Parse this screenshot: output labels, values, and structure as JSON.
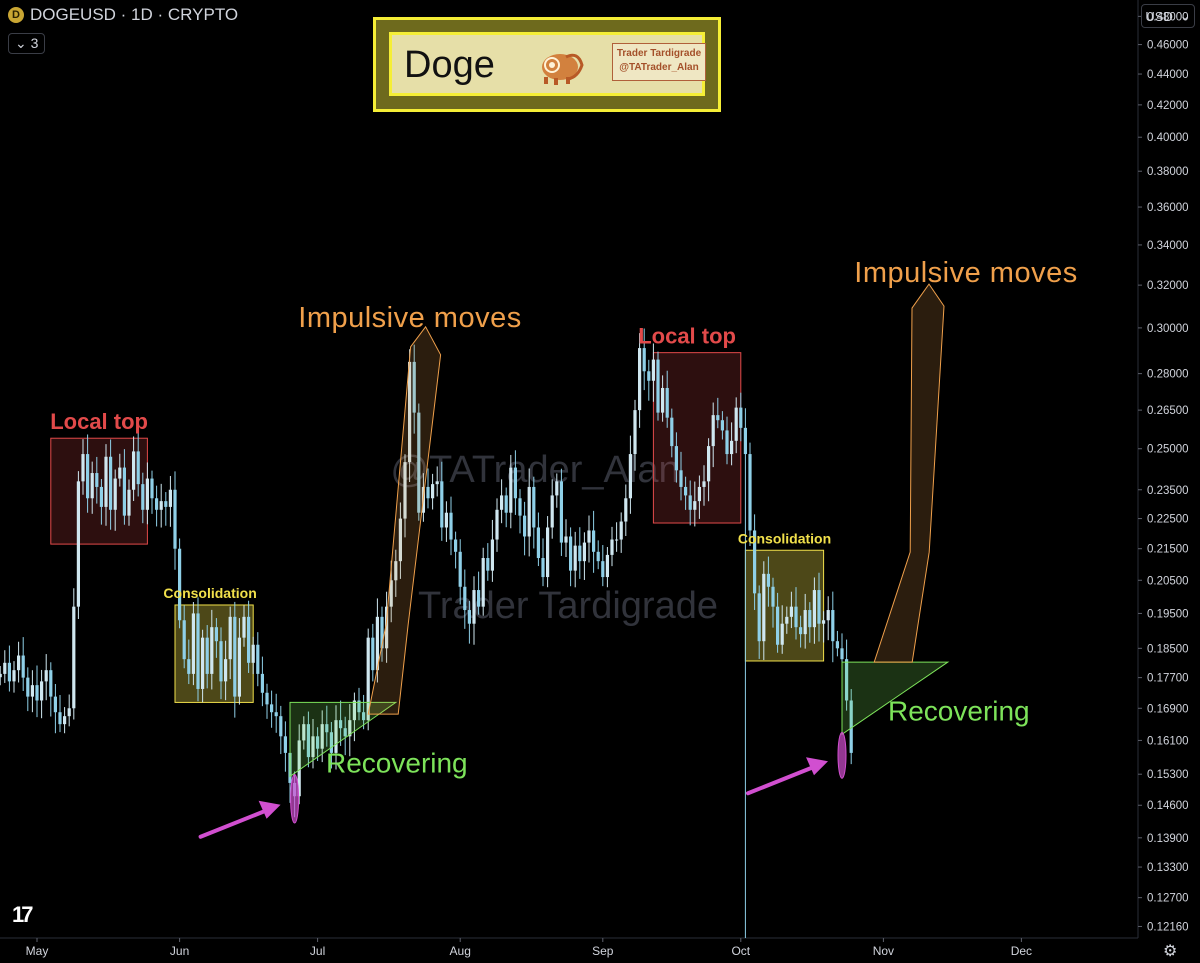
{
  "header": {
    "symbol": "DOGEUSD · 1D · CRYPTO",
    "indicator_count": "3",
    "currency": "USD",
    "currency_chevron": "⌄",
    "collapse_chevron": "⌄"
  },
  "logo": {
    "title": "Doge",
    "badge_line1": "Trader Tardigrade",
    "badge_line2": "@TATrader_Alan"
  },
  "watermark": {
    "line1": "@TATrader_Alan",
    "line2": "Trader Tardigrade"
  },
  "colors": {
    "up_candle": "#cfe7f0",
    "down_candle": "#8fd0e8",
    "local_top": "#e24a4a",
    "consolidation": "#f1e04b",
    "impulsive": "#f0a04b",
    "recovering": "#7de35a",
    "arrow": "#d14fd0"
  },
  "chart_data": {
    "type": "candlestick",
    "ylim": [
      0.1195,
      0.492
    ],
    "y_scale": "log",
    "grid": false,
    "y_ticks": [
      "0.48000",
      "0.46000",
      "0.44000",
      "0.42000",
      "0.40000",
      "0.38000",
      "0.36000",
      "0.34000",
      "0.32000",
      "0.30000",
      "0.28000",
      "0.26500",
      "0.25000",
      "0.23500",
      "0.22500",
      "0.21500",
      "0.20500",
      "0.19500",
      "0.18500",
      "0.17700",
      "0.16900",
      "0.16100",
      "0.15300",
      "0.14600",
      "0.13900",
      "0.13300",
      "0.12700",
      "0.12160"
    ],
    "x_ticks": [
      {
        "label": "May",
        "day": 0
      },
      {
        "label": "Jun",
        "day": 31
      },
      {
        "label": "Jul",
        "day": 61
      },
      {
        "label": "Aug",
        "day": 92
      },
      {
        "label": "Sep",
        "day": 123
      },
      {
        "label": "Oct",
        "day": 153
      },
      {
        "label": "Nov",
        "day": 184
      },
      {
        "label": "Dec",
        "day": 214
      }
    ],
    "closes_start_day": -8,
    "closes": [
      0.178,
      0.181,
      0.176,
      0.179,
      0.183,
      0.177,
      0.172,
      0.175,
      0.171,
      0.176,
      0.179,
      0.172,
      0.168,
      0.165,
      0.167,
      0.169,
      0.197,
      0.238,
      0.248,
      0.232,
      0.241,
      0.236,
      0.229,
      0.247,
      0.228,
      0.239,
      0.243,
      0.226,
      0.235,
      0.249,
      0.237,
      0.228,
      0.239,
      0.232,
      0.228,
      0.231,
      0.229,
      0.235,
      0.215,
      0.193,
      0.182,
      0.178,
      0.195,
      0.174,
      0.188,
      0.178,
      0.191,
      0.187,
      0.176,
      0.182,
      0.194,
      0.172,
      0.188,
      0.194,
      0.181,
      0.186,
      0.178,
      0.173,
      0.17,
      0.168,
      0.167,
      0.162,
      0.158,
      0.151,
      0.148,
      0.161,
      0.165,
      0.157,
      0.162,
      0.159,
      0.165,
      0.163,
      0.158,
      0.166,
      0.164,
      0.162,
      0.166,
      0.171,
      0.168,
      0.166,
      0.188,
      0.179,
      0.194,
      0.185,
      0.197,
      0.205,
      0.211,
      0.225,
      0.245,
      0.285,
      0.264,
      0.227,
      0.236,
      0.232,
      0.237,
      0.238,
      0.222,
      0.227,
      0.218,
      0.214,
      0.203,
      0.196,
      0.192,
      0.202,
      0.197,
      0.212,
      0.208,
      0.218,
      0.228,
      0.233,
      0.227,
      0.243,
      0.232,
      0.226,
      0.219,
      0.236,
      0.222,
      0.212,
      0.206,
      0.222,
      0.233,
      0.238,
      0.217,
      0.219,
      0.208,
      0.216,
      0.211,
      0.217,
      0.221,
      0.214,
      0.211,
      0.206,
      0.213,
      0.218,
      0.218,
      0.224,
      0.232,
      0.248,
      0.265,
      0.291,
      0.281,
      0.277,
      0.286,
      0.264,
      0.274,
      0.262,
      0.251,
      0.242,
      0.236,
      0.233,
      0.228,
      0.231,
      0.236,
      0.238,
      0.251,
      0.263,
      0.261,
      0.257,
      0.248,
      0.253,
      0.266,
      0.258,
      0.248,
      0.221,
      0.201,
      0.187,
      0.207,
      0.203,
      0.197,
      0.186,
      0.192,
      0.194,
      0.197,
      0.191,
      0.189,
      0.196,
      0.191,
      0.202,
      0.192,
      0.193,
      0.196,
      0.187,
      0.185,
      0.182,
      0.171,
      0.158
    ],
    "wick_low_overrides": [
      {
        "day": 154,
        "low": 0.1195
      }
    ],
    "zones": [
      {
        "kind": "local_top",
        "label": "Local top",
        "start_day": 3,
        "end_day": 24,
        "high": 0.254,
        "low": 0.2165
      },
      {
        "kind": "consolidation",
        "label": "Consolidation",
        "start_day": 30,
        "end_day": 47,
        "high": 0.1975,
        "low": 0.1705
      },
      {
        "kind": "recovering",
        "label": "Recovering",
        "apex_day": 55,
        "apex_price": 0.1525,
        "left_top_price": 0.1705,
        "right_day": 78
      },
      {
        "kind": "impulsive",
        "label": "Impulsive moves",
        "start_day": 72,
        "start_price": 0.1675,
        "end_day": 86,
        "end_price": 0.3005
      },
      {
        "kind": "local_top",
        "label": "Local top",
        "start_day": 134,
        "end_day": 153,
        "high": 0.289,
        "low": 0.2235
      },
      {
        "kind": "consolidation",
        "label": "Consolidation",
        "start_day": 154,
        "end_day": 171,
        "high": 0.2145,
        "low": 0.1815
      },
      {
        "kind": "recovering",
        "label": "Recovering",
        "apex_day": 175,
        "apex_price": 0.1625,
        "left_top_price": 0.1812,
        "right_day": 198
      },
      {
        "kind": "impulsive",
        "label": "Impulsive moves",
        "start_day": 182,
        "start_price": 0.1812,
        "end_day": 195,
        "end_price": 0.3205
      }
    ],
    "highlights": [
      {
        "day": 56,
        "low": 0.143,
        "high": 0.152
      },
      {
        "day": 175,
        "low": 0.153,
        "high": 0.162
      }
    ]
  }
}
